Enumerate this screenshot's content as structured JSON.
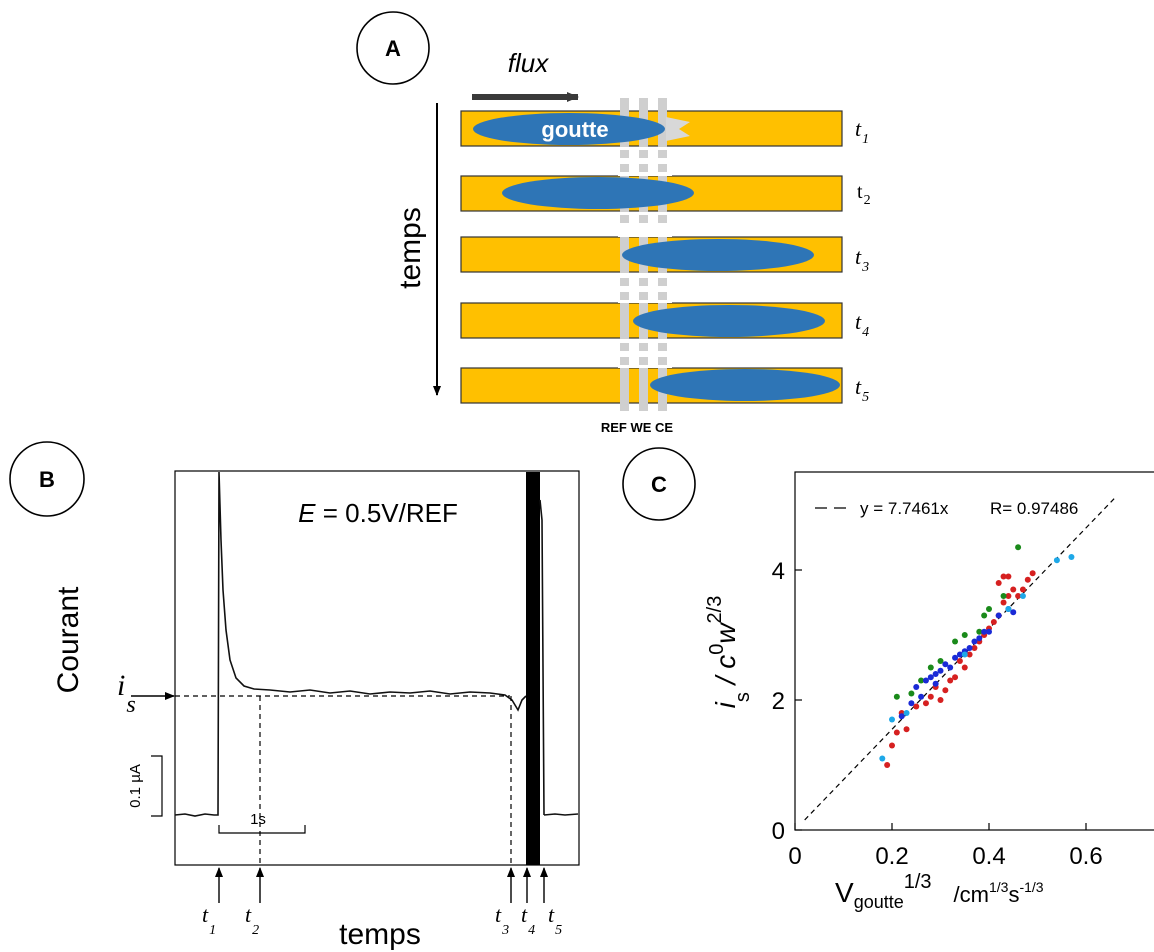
{
  "panel_a": {
    "letter": "A",
    "flux_label": "flux",
    "drop_label": "goutte",
    "time_axis_label": "temps",
    "electrode_labels": "REF WE CE",
    "rows": [
      {
        "t": "t",
        "sub": "1"
      },
      {
        "t": "t",
        "sub": "2"
      },
      {
        "t": "t",
        "sub": "3"
      },
      {
        "t": "t",
        "sub": "4"
      },
      {
        "t": "t",
        "sub": "5"
      }
    ]
  },
  "panel_b": {
    "letter": "B",
    "ylabel": "Courant",
    "xlabel": "temps",
    "potential_prefix": "E",
    "potential_rest": " = 0.5V/REF",
    "is_main": "i",
    "is_sub": "s",
    "current_scale": "0.1 µA",
    "time_scale": "1s",
    "markers": [
      {
        "t": "t",
        "sub": "1"
      },
      {
        "t": "t",
        "sub": "2"
      },
      {
        "t": "t",
        "sub": "3"
      },
      {
        "t": "t",
        "sub": "4"
      },
      {
        "t": "t",
        "sub": "5"
      }
    ]
  },
  "panel_c": {
    "letter": "C",
    "fit_label": "y = 7.7461x",
    "r_label": "R= 0.97486",
    "ylabel_i": "i",
    "ylabel_s": "s",
    "ylabel_rest": " / c",
    "ylabel_sup0": "0",
    "ylabel_w": "w",
    "ylabel_exp": "2/3",
    "xlabel_v": "V",
    "xlabel_sub": "goutte",
    "xlabel_exp": "1/3",
    "xlabel_unit": "/cm",
    "xlabel_unit_exp1": "1/3",
    "xlabel_s": "s",
    "xlabel_unit_exp2": "-1/3",
    "colors": {
      "red": "#d62020",
      "green": "#1a8a1a",
      "blue": "#1a2ad6",
      "cyan": "#1ea8e8"
    }
  },
  "chart_data": {
    "type": "scatter",
    "xlim": [
      0,
      0.7
    ],
    "ylim": [
      0,
      5
    ],
    "x_ticks": [
      "0",
      "0.2",
      "0.4",
      "0.6"
    ],
    "y_ticks": [
      "0",
      "2",
      "4"
    ],
    "fit": {
      "slope": 7.7461,
      "R": 0.97486
    },
    "series": [
      {
        "color": "red",
        "points": [
          [
            0.19,
            1.0
          ],
          [
            0.2,
            1.3
          ],
          [
            0.21,
            1.5
          ],
          [
            0.23,
            1.55
          ],
          [
            0.22,
            1.8
          ],
          [
            0.25,
            1.9
          ],
          [
            0.27,
            1.95
          ],
          [
            0.28,
            2.05
          ],
          [
            0.3,
            2.0
          ],
          [
            0.29,
            2.2
          ],
          [
            0.31,
            2.15
          ],
          [
            0.32,
            2.3
          ],
          [
            0.33,
            2.35
          ],
          [
            0.35,
            2.5
          ],
          [
            0.34,
            2.6
          ],
          [
            0.36,
            2.7
          ],
          [
            0.37,
            2.8
          ],
          [
            0.38,
            2.9
          ],
          [
            0.39,
            3.0
          ],
          [
            0.4,
            3.1
          ],
          [
            0.41,
            3.2
          ],
          [
            0.42,
            3.3
          ],
          [
            0.43,
            3.5
          ],
          [
            0.44,
            3.6
          ],
          [
            0.42,
            3.8
          ],
          [
            0.45,
            3.7
          ],
          [
            0.44,
            3.9
          ],
          [
            0.47,
            3.7
          ],
          [
            0.48,
            3.85
          ],
          [
            0.46,
            3.6
          ],
          [
            0.49,
            3.95
          ],
          [
            0.43,
            3.9
          ]
        ]
      },
      {
        "color": "green",
        "points": [
          [
            0.21,
            2.05
          ],
          [
            0.24,
            2.1
          ],
          [
            0.26,
            2.3
          ],
          [
            0.28,
            2.5
          ],
          [
            0.3,
            2.6
          ],
          [
            0.33,
            2.9
          ],
          [
            0.35,
            3.0
          ],
          [
            0.38,
            3.05
          ],
          [
            0.4,
            3.4
          ],
          [
            0.43,
            3.6
          ],
          [
            0.46,
            4.35
          ],
          [
            0.39,
            3.3
          ]
        ]
      },
      {
        "color": "blue",
        "points": [
          [
            0.22,
            1.75
          ],
          [
            0.24,
            1.95
          ],
          [
            0.25,
            2.2
          ],
          [
            0.26,
            2.05
          ],
          [
            0.27,
            2.3
          ],
          [
            0.28,
            2.35
          ],
          [
            0.29,
            2.4
          ],
          [
            0.3,
            2.45
          ],
          [
            0.31,
            2.55
          ],
          [
            0.32,
            2.5
          ],
          [
            0.33,
            2.65
          ],
          [
            0.34,
            2.7
          ],
          [
            0.35,
            2.75
          ],
          [
            0.36,
            2.8
          ],
          [
            0.37,
            2.9
          ],
          [
            0.38,
            2.95
          ],
          [
            0.39,
            3.05
          ],
          [
            0.4,
            3.05
          ],
          [
            0.42,
            3.3
          ],
          [
            0.44,
            3.4
          ],
          [
            0.45,
            3.35
          ],
          [
            0.29,
            2.25
          ]
        ]
      },
      {
        "color": "cyan",
        "points": [
          [
            0.18,
            1.1
          ],
          [
            0.2,
            1.7
          ],
          [
            0.23,
            1.8
          ],
          [
            0.35,
            2.7
          ],
          [
            0.44,
            3.4
          ],
          [
            0.54,
            4.15
          ],
          [
            0.57,
            4.2
          ],
          [
            0.47,
            3.6
          ]
        ]
      }
    ]
  }
}
